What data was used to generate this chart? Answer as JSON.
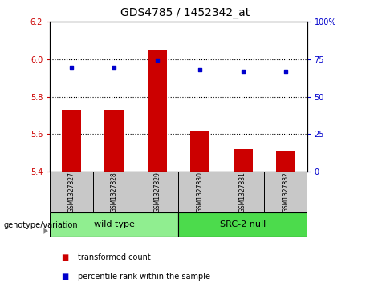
{
  "title": "GDS4785 / 1452342_at",
  "samples": [
    "GSM1327827",
    "GSM1327828",
    "GSM1327829",
    "GSM1327830",
    "GSM1327831",
    "GSM1327832"
  ],
  "bar_values": [
    5.73,
    5.73,
    6.05,
    5.62,
    5.52,
    5.51
  ],
  "dot_values": [
    5.955,
    5.955,
    5.995,
    5.945,
    5.935,
    5.935
  ],
  "ylim": [
    5.4,
    6.2
  ],
  "yticks": [
    5.4,
    5.6,
    5.8,
    6.0,
    6.2
  ],
  "right_yticks": [
    0,
    25,
    50,
    75,
    100
  ],
  "right_ylabels": [
    "0",
    "25",
    "50",
    "75",
    "100%"
  ],
  "bar_color": "#cc0000",
  "dot_color": "#0000cc",
  "tick_label_color_left": "#cc0000",
  "tick_label_color_right": "#0000cc",
  "legend_items": [
    {
      "color": "#cc0000",
      "label": "transformed count"
    },
    {
      "color": "#0000cc",
      "label": "percentile rank within the sample"
    }
  ],
  "genotype_label": "genotype/variation",
  "group1_label": "wild type",
  "group2_label": "SRC-2 null",
  "group_sample_bg_color": "#c8c8c8",
  "group1_color": "#90ee90",
  "group2_color": "#4cdb4c",
  "title_fontsize": 10,
  "tick_fontsize": 7,
  "sample_fontsize": 5.5,
  "group_fontsize": 8,
  "legend_fontsize": 7,
  "genotype_fontsize": 7
}
